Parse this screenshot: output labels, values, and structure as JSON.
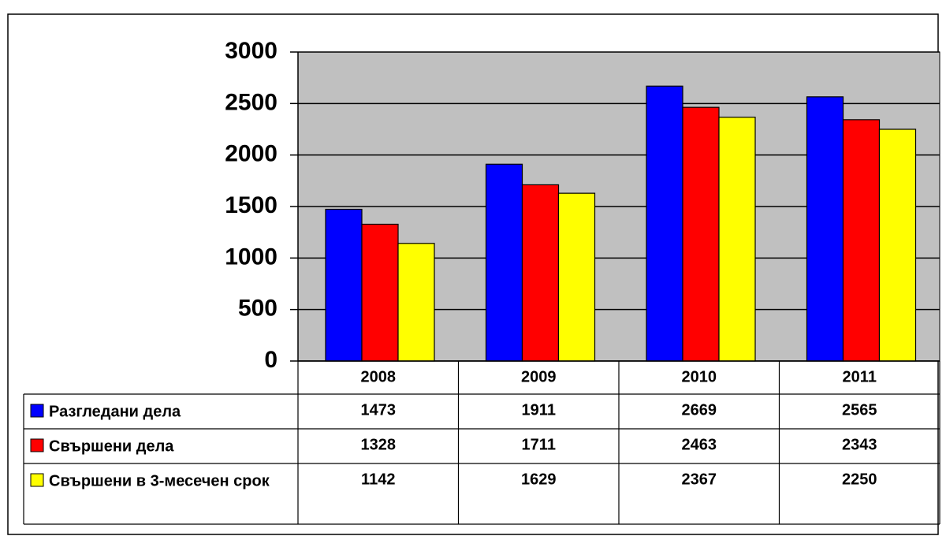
{
  "chart_data": {
    "type": "bar",
    "categories": [
      "2008",
      "2009",
      "2010",
      "2011"
    ],
    "series": [
      {
        "name": "Разгледани дела",
        "color": "#0000ff",
        "values": [
          1473,
          1911,
          2669,
          2565
        ]
      },
      {
        "name": "Свършени дела",
        "color": "#ff0000",
        "values": [
          1328,
          1711,
          2463,
          2343
        ]
      },
      {
        "name": "Свършени в 3-месечен срок",
        "color": "#ffff00",
        "values": [
          1142,
          1629,
          2367,
          2250
        ]
      }
    ],
    "ylim": [
      0,
      3000
    ],
    "yticks": [
      0,
      500,
      1000,
      1500,
      2000,
      2500,
      3000
    ],
    "grid": true,
    "plot_background": "#c0c0c0"
  }
}
